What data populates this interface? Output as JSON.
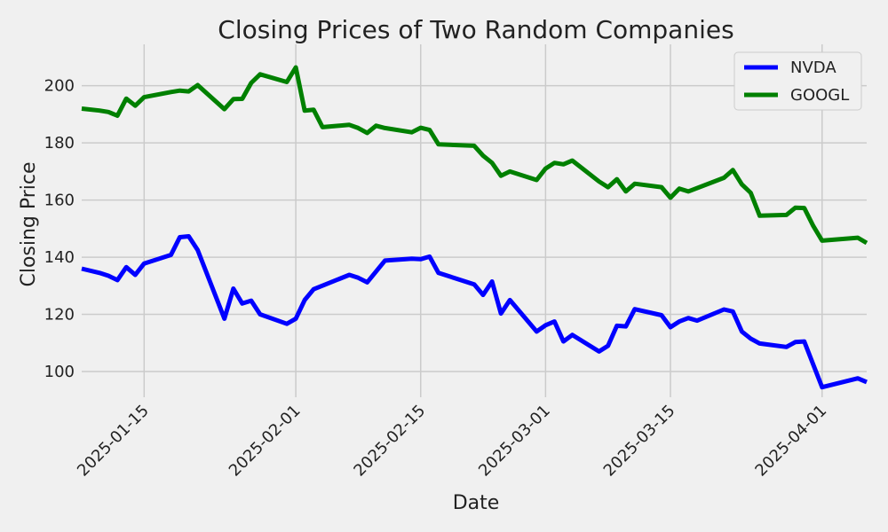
{
  "chart_data": {
    "type": "line",
    "title": "Closing Prices of Two Random Companies",
    "xlabel": "Date",
    "ylabel": "Closing Price",
    "ylim": [
      91,
      212
    ],
    "xlim": [
      "2025-01-08",
      "2025-04-06"
    ],
    "grid": true,
    "legend_position": "top-right",
    "x_ticks": [
      "2025-01-15",
      "2025-02-01",
      "2025-02-15",
      "2025-03-01",
      "2025-03-15",
      "2025-04-01"
    ],
    "y_ticks": [
      100,
      120,
      140,
      160,
      180,
      200
    ],
    "series": [
      {
        "name": "NVDA",
        "color": "#0000ff",
        "points": [
          [
            "2025-01-08",
            136
          ],
          [
            "2025-01-10",
            134.5
          ],
          [
            "2025-01-11",
            133.5
          ],
          [
            "2025-01-12",
            132
          ],
          [
            "2025-01-13",
            136.5
          ],
          [
            "2025-01-14",
            133.8
          ],
          [
            "2025-01-15",
            137.8
          ],
          [
            "2025-01-18",
            140.8
          ],
          [
            "2025-01-19",
            147
          ],
          [
            "2025-01-20",
            147.3
          ],
          [
            "2025-01-21",
            142.5
          ],
          [
            "2025-01-24",
            118.5
          ],
          [
            "2025-01-25",
            129
          ],
          [
            "2025-01-26",
            123.8
          ],
          [
            "2025-01-27",
            124.8
          ],
          [
            "2025-01-28",
            120
          ],
          [
            "2025-01-31",
            116.7
          ],
          [
            "2025-02-01",
            118.5
          ],
          [
            "2025-02-02",
            125
          ],
          [
            "2025-02-03",
            128.8
          ],
          [
            "2025-02-07",
            133.8
          ],
          [
            "2025-02-08",
            132.8
          ],
          [
            "2025-02-09",
            131.2
          ],
          [
            "2025-02-10",
            135
          ],
          [
            "2025-02-11",
            138.8
          ],
          [
            "2025-02-14",
            139.5
          ],
          [
            "2025-02-15",
            139.3
          ],
          [
            "2025-02-16",
            140.2
          ],
          [
            "2025-02-17",
            134.5
          ],
          [
            "2025-02-21",
            130.5
          ],
          [
            "2025-02-22",
            126.8
          ],
          [
            "2025-02-23",
            131.5
          ],
          [
            "2025-02-24",
            120.3
          ],
          [
            "2025-02-25",
            125
          ],
          [
            "2025-02-28",
            114
          ],
          [
            "2025-03-01",
            116.2
          ],
          [
            "2025-03-02",
            117.5
          ],
          [
            "2025-03-03",
            110.5
          ],
          [
            "2025-03-04",
            112.8
          ],
          [
            "2025-03-07",
            107
          ],
          [
            "2025-03-08",
            109
          ],
          [
            "2025-03-09",
            116
          ],
          [
            "2025-03-10",
            115.8
          ],
          [
            "2025-03-11",
            121.8
          ],
          [
            "2025-03-14",
            119.7
          ],
          [
            "2025-03-15",
            115.5
          ],
          [
            "2025-03-16",
            117.5
          ],
          [
            "2025-03-17",
            118.7
          ],
          [
            "2025-03-18",
            117.8
          ],
          [
            "2025-03-21",
            121.7
          ],
          [
            "2025-03-22",
            121
          ],
          [
            "2025-03-23",
            114
          ],
          [
            "2025-03-24",
            111.5
          ],
          [
            "2025-03-25",
            109.8
          ],
          [
            "2025-03-28",
            108.6
          ],
          [
            "2025-03-29",
            110.3
          ],
          [
            "2025-03-30",
            110.5
          ],
          [
            "2025-03-31",
            102.5
          ],
          [
            "2025-04-01",
            94.5
          ],
          [
            "2025-04-05",
            97.6
          ],
          [
            "2025-04-06",
            96.3
          ]
        ]
      },
      {
        "name": "GOOGL",
        "color": "#008000",
        "points": [
          [
            "2025-01-08",
            192
          ],
          [
            "2025-01-10",
            191.3
          ],
          [
            "2025-01-11",
            190.8
          ],
          [
            "2025-01-12",
            189.5
          ],
          [
            "2025-01-13",
            195.5
          ],
          [
            "2025-01-14",
            193
          ],
          [
            "2025-01-15",
            196
          ],
          [
            "2025-01-18",
            197.8
          ],
          [
            "2025-01-19",
            198.3
          ],
          [
            "2025-01-20",
            198
          ],
          [
            "2025-01-21",
            200.2
          ],
          [
            "2025-01-24",
            191.8
          ],
          [
            "2025-01-25",
            195.3
          ],
          [
            "2025-01-26",
            195.4
          ],
          [
            "2025-01-27",
            201
          ],
          [
            "2025-01-28",
            204
          ],
          [
            "2025-01-31",
            201.3
          ],
          [
            "2025-02-01",
            206.4
          ],
          [
            "2025-02-02",
            191.3
          ],
          [
            "2025-02-03",
            191.6
          ],
          [
            "2025-02-04",
            185.5
          ],
          [
            "2025-02-07",
            186.3
          ],
          [
            "2025-02-08",
            185.2
          ],
          [
            "2025-02-09",
            183.5
          ],
          [
            "2025-02-10",
            186
          ],
          [
            "2025-02-11",
            185.2
          ],
          [
            "2025-02-14",
            183.7
          ],
          [
            "2025-02-15",
            185.3
          ],
          [
            "2025-02-16",
            184.5
          ],
          [
            "2025-02-17",
            179.5
          ],
          [
            "2025-02-21",
            179
          ],
          [
            "2025-02-22",
            175.5
          ],
          [
            "2025-02-23",
            173
          ],
          [
            "2025-02-24",
            168.5
          ],
          [
            "2025-02-25",
            170
          ],
          [
            "2025-02-28",
            167
          ],
          [
            "2025-03-01",
            171
          ],
          [
            "2025-03-02",
            173
          ],
          [
            "2025-03-03",
            172.5
          ],
          [
            "2025-03-04",
            173.8
          ],
          [
            "2025-03-07",
            166.5
          ],
          [
            "2025-03-08",
            164.5
          ],
          [
            "2025-03-09",
            167.3
          ],
          [
            "2025-03-10",
            163
          ],
          [
            "2025-03-11",
            165.7
          ],
          [
            "2025-03-14",
            164.5
          ],
          [
            "2025-03-15",
            160.8
          ],
          [
            "2025-03-16",
            164
          ],
          [
            "2025-03-17",
            163
          ],
          [
            "2025-03-21",
            167.8
          ],
          [
            "2025-03-22",
            170.5
          ],
          [
            "2025-03-23",
            165.5
          ],
          [
            "2025-03-24",
            162.5
          ],
          [
            "2025-03-25",
            154.5
          ],
          [
            "2025-03-28",
            154.8
          ],
          [
            "2025-03-29",
            157.3
          ],
          [
            "2025-03-30",
            157.2
          ],
          [
            "2025-03-31",
            151
          ],
          [
            "2025-04-01",
            145.8
          ],
          [
            "2025-04-05",
            146.8
          ],
          [
            "2025-04-06",
            145
          ]
        ]
      }
    ]
  }
}
